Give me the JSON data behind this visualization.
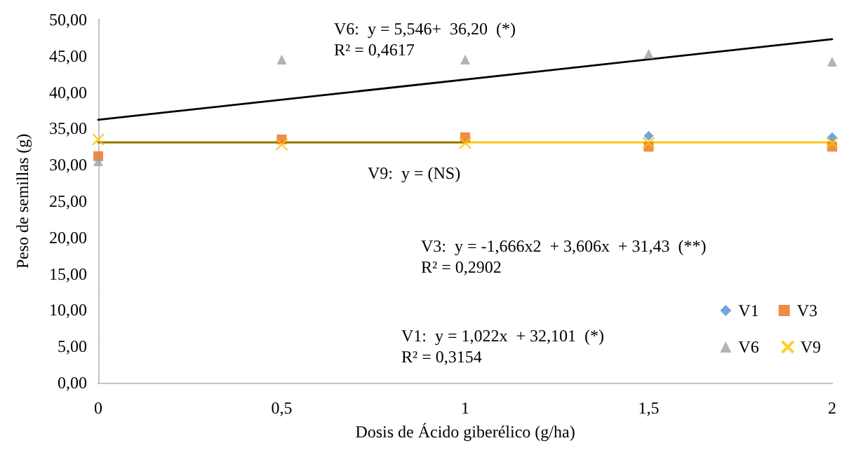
{
  "chart_data": {
    "type": "scatter",
    "xlabel": "Dosis de Ácido giberélico (g/ha)",
    "ylabel": "Peso de semillas (g)",
    "x": [
      0,
      0.5,
      1,
      1.5,
      2
    ],
    "series": [
      {
        "name": "V1",
        "color": "#4f8fd6",
        "marker": "diamond",
        "values": [
          null,
          null,
          null,
          34.0,
          33.8
        ]
      },
      {
        "name": "V3",
        "color": "#e8711c",
        "marker": "square",
        "values": [
          31.2,
          33.5,
          33.8,
          32.5,
          32.5
        ]
      },
      {
        "name": "V6",
        "color": "#a0a0a0",
        "marker": "triangle",
        "values": [
          30.5,
          44.5,
          44.5,
          45.3,
          44.2
        ]
      },
      {
        "name": "V9",
        "color": "#ffc000",
        "marker": "cross",
        "values": [
          33.5,
          32.8,
          33.0,
          33.0,
          33.0
        ]
      },
      {
        "type": "line",
        "color": "#000000",
        "x": [
          0,
          2
        ],
        "values": [
          36.2,
          47.3
        ]
      },
      {
        "type": "line",
        "color": "#ffc000",
        "x": [
          0,
          2
        ],
        "values": [
          33.1,
          33.1
        ]
      },
      {
        "type": "line",
        "color": "#8b7500",
        "x": [
          0,
          1
        ],
        "values": [
          33.1,
          33.1
        ]
      }
    ],
    "xlim": [
      0,
      2
    ],
    "xticks": [
      {
        "value": 0,
        "label": "0"
      },
      {
        "value": 0.5,
        "label": "0,5"
      },
      {
        "value": 1,
        "label": "1"
      },
      {
        "value": 1.5,
        "label": "1,5"
      },
      {
        "value": 2,
        "label": "2"
      }
    ],
    "ylim": [
      0,
      50
    ],
    "yticks": [
      {
        "value": 0,
        "label": "0,00"
      },
      {
        "value": 5,
        "label": "5,00"
      },
      {
        "value": 10,
        "label": "10,00"
      },
      {
        "value": 15,
        "label": "15,00"
      },
      {
        "value": 20,
        "label": "20,00"
      },
      {
        "value": 25,
        "label": "25,00"
      },
      {
        "value": 30,
        "label": "30,00"
      },
      {
        "value": 35,
        "label": "35,00"
      },
      {
        "value": 40,
        "label": "40,00"
      },
      {
        "value": 45,
        "label": "45,00"
      },
      {
        "value": 50,
        "label": "50,00"
      }
    ],
    "annotations": [
      "V6:  y = 5,546+  36,20  (*)\nR² = 0,4617",
      "V9:  y = (NS)",
      "V3:  y = -1,666x2  + 3,606x  + 31,43  (**)\nR² = 0,2902",
      "V1:  y = 1,022x  + 32,101  (*)\nR² = 0,3154"
    ],
    "grid": false,
    "legend": "bottom right"
  }
}
